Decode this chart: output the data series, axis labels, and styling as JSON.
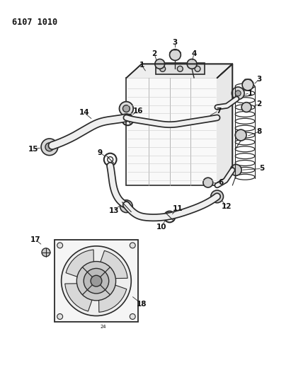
{
  "title_code": "6107 1010",
  "bg": "#ffffff",
  "lc": "#2a2a2a",
  "tc": "#111111",
  "fig_width": 4.11,
  "fig_height": 5.33,
  "dpi": 100
}
